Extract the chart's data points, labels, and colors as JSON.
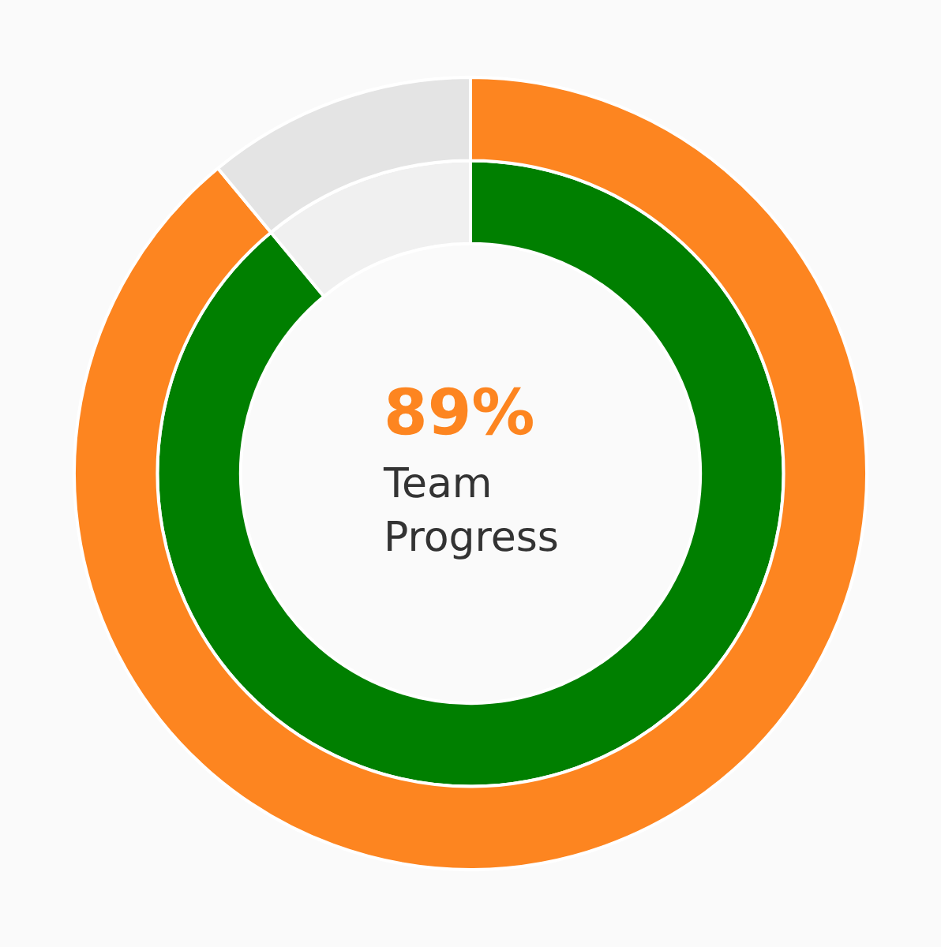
{
  "chart_data": {
    "type": "donut",
    "title": "89%",
    "subtitle": "Team Progress",
    "categories": [
      null,
      null
    ],
    "series": [
      {
        "colors": [
          "#007f00",
          "#f0f0f0"
        ],
        "values": [
          89,
          11
        ]
      },
      {
        "colors": [
          "#fd8520",
          "#e4e4e4"
        ],
        "values": [
          89,
          11
        ]
      }
    ]
  }
}
